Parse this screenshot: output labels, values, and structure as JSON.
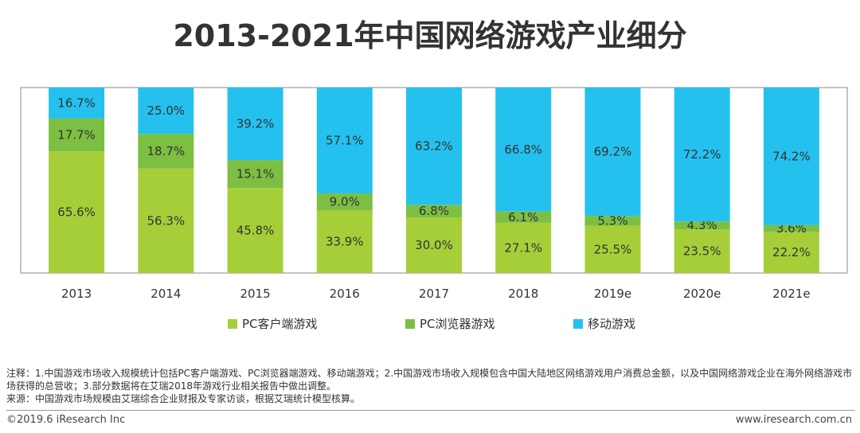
{
  "title": "2013-2021年中国网络游戏产业细分",
  "colors": {
    "pc_client": "#a6ce39",
    "pc_browser": "#7cbf42",
    "mobile": "#24c1ef",
    "background": "#ffffff",
    "plot_bg": "#ffffff"
  },
  "chart_data": {
    "type": "bar",
    "stacked": true,
    "percent_stacked": true,
    "categories": [
      "2013",
      "2014",
      "2015",
      "2016",
      "2017",
      "2018",
      "2019e",
      "2020e",
      "2021e"
    ],
    "series": [
      {
        "name": "PC客户端游戏",
        "values": [
          65.6,
          56.3,
          45.8,
          33.9,
          30.0,
          27.1,
          25.5,
          23.5,
          22.2
        ]
      },
      {
        "name": "PC浏览器游戏",
        "values": [
          17.7,
          18.7,
          15.1,
          9.0,
          6.8,
          6.1,
          5.3,
          4.3,
          3.6
        ]
      },
      {
        "name": "移动游戏",
        "values": [
          16.7,
          25.0,
          39.2,
          57.1,
          63.2,
          66.8,
          69.2,
          72.2,
          74.2
        ]
      }
    ],
    "ylim": [
      0,
      100
    ],
    "value_suffix": "%",
    "legend_position": "bottom"
  },
  "notes": {
    "note": "注释：1.中国游戏市场收入规模统计包括PC客户端游戏、PC浏览器端游戏、移动端游戏；2.中国游戏市场收入规模包含中国大陆地区网络游戏用户消费总金额，以及中国网络游戏企业在海外网络游戏市场获得的总营收；3.部分数据将在艾瑞2018年游戏行业相关报告中做出调整。",
    "source": "来源：中国游戏市场规模由艾瑞综合企业财报及专家访谈，根据艾瑞统计模型核算。"
  },
  "footer": {
    "copyright": "©2019.6 iResearch Inc",
    "website": "www.iresearch.com.cn"
  }
}
